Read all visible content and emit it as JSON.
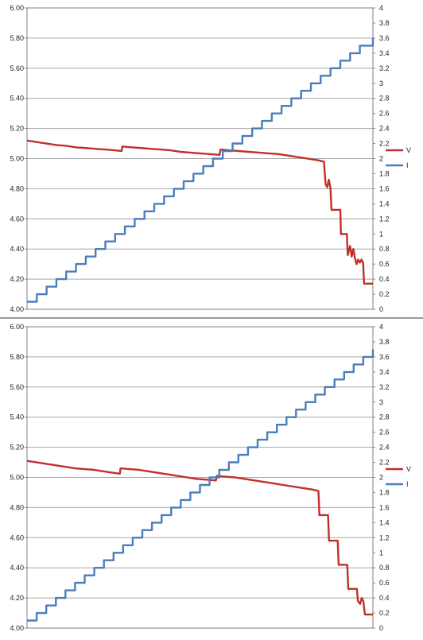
{
  "chart_data": [
    {
      "type": "line",
      "title": "",
      "xlabel": "",
      "y_left": {
        "min": 4.0,
        "max": 6.0,
        "ticks": [
          "4.00",
          "4.20",
          "4.40",
          "4.60",
          "4.80",
          "5.00",
          "5.20",
          "5.40",
          "5.60",
          "5.80",
          "6.00"
        ]
      },
      "y_right": {
        "min": 0,
        "max": 4,
        "ticks": [
          "0",
          "0.2",
          "0.4",
          "0.6",
          "0.8",
          "1",
          "1.2",
          "1.4",
          "1.6",
          "1.8",
          "2",
          "2.2",
          "2.4",
          "2.6",
          "2.8",
          "3",
          "3.2",
          "3.4",
          "3.6",
          "3.8",
          "4"
        ]
      },
      "grid": true,
      "legend_position": "right",
      "series": [
        {
          "name": "V",
          "axis": "left",
          "color": "#c0302a",
          "points": [
            [
              0,
              5.12
            ],
            [
              3,
              5.11
            ],
            [
              6,
              5.1
            ],
            [
              9,
              5.09
            ],
            [
              12,
              5.085
            ],
            [
              15,
              5.075
            ],
            [
              18,
              5.07
            ],
            [
              21,
              5.065
            ],
            [
              24,
              5.06
            ],
            [
              27,
              5.055
            ],
            [
              29,
              5.05
            ],
            [
              29.2,
              5.08
            ],
            [
              32,
              5.075
            ],
            [
              35,
              5.07
            ],
            [
              38,
              5.065
            ],
            [
              41,
              5.06
            ],
            [
              44,
              5.055
            ],
            [
              47,
              5.045
            ],
            [
              50,
              5.04
            ],
            [
              53,
              5.035
            ],
            [
              56,
              5.03
            ],
            [
              59,
              5.025
            ],
            [
              59.3,
              5.06
            ],
            [
              62,
              5.055
            ],
            [
              65,
              5.05
            ],
            [
              68,
              5.045
            ],
            [
              71,
              5.04
            ],
            [
              74,
              5.035
            ],
            [
              77,
              5.03
            ],
            [
              80,
              5.02
            ],
            [
              83,
              5.01
            ],
            [
              86,
              5.0
            ],
            [
              89,
              4.99
            ],
            [
              91,
              4.98
            ],
            [
              91.5,
              4.83
            ],
            [
              92,
              4.81
            ],
            [
              92.5,
              4.86
            ],
            [
              93,
              4.8
            ],
            [
              93.3,
              4.66
            ],
            [
              96,
              4.66
            ],
            [
              96.2,
              4.5
            ],
            [
              98,
              4.5
            ],
            [
              98.3,
              4.36
            ],
            [
              99,
              4.42
            ],
            [
              99.5,
              4.35
            ],
            [
              100,
              4.4
            ],
            [
              100.5,
              4.34
            ],
            [
              101,
              4.3
            ],
            [
              101.5,
              4.33
            ],
            [
              102,
              4.31
            ],
            [
              102.5,
              4.33
            ],
            [
              103,
              4.31
            ],
            [
              103.3,
              4.17
            ],
            [
              106,
              4.17
            ]
          ]
        },
        {
          "name": "I",
          "axis": "right",
          "color": "#4a7ebb",
          "step_x": [
            0,
            3,
            6,
            9,
            12,
            15,
            18,
            21,
            24,
            27,
            30,
            33,
            36,
            39,
            42,
            45,
            48,
            51,
            54,
            57,
            60,
            63,
            66,
            69,
            72,
            75,
            78,
            81,
            84,
            87,
            90,
            93,
            96,
            99,
            102,
            106
          ],
          "step_y": [
            0.1,
            0.2,
            0.3,
            0.4,
            0.5,
            0.6,
            0.7,
            0.8,
            0.9,
            1.0,
            1.1,
            1.2,
            1.3,
            1.4,
            1.5,
            1.6,
            1.7,
            1.8,
            1.9,
            2.0,
            2.1,
            2.2,
            2.3,
            2.4,
            2.5,
            2.6,
            2.7,
            2.8,
            2.9,
            3.0,
            3.1,
            3.2,
            3.3,
            3.4,
            3.5,
            3.6
          ]
        }
      ]
    },
    {
      "type": "line",
      "title": "",
      "xlabel": "",
      "y_left": {
        "min": 4.0,
        "max": 6.0,
        "ticks": [
          "4.00",
          "4.20",
          "4.40",
          "4.60",
          "4.80",
          "5.00",
          "5.20",
          "5.40",
          "5.60",
          "5.80",
          "6.00"
        ]
      },
      "y_right": {
        "min": 0,
        "max": 4,
        "ticks": [
          "0",
          "0.2",
          "0.4",
          "0.6",
          "0.8",
          "1",
          "1.2",
          "1.4",
          "1.6",
          "1.8",
          "2",
          "2.2",
          "2.4",
          "2.6",
          "2.8",
          "3",
          "3.2",
          "3.4",
          "3.6",
          "3.8",
          "4"
        ]
      },
      "grid": true,
      "legend_position": "right",
      "series": [
        {
          "name": "V",
          "axis": "left",
          "color": "#c0302a",
          "points": [
            [
              0,
              5.11
            ],
            [
              3,
              5.1
            ],
            [
              6,
              5.09
            ],
            [
              9,
              5.08
            ],
            [
              12,
              5.07
            ],
            [
              15,
              5.06
            ],
            [
              18,
              5.055
            ],
            [
              21,
              5.05
            ],
            [
              24,
              5.04
            ],
            [
              27,
              5.03
            ],
            [
              29,
              5.025
            ],
            [
              29.2,
              5.06
            ],
            [
              32,
              5.055
            ],
            [
              35,
              5.05
            ],
            [
              38,
              5.04
            ],
            [
              41,
              5.03
            ],
            [
              44,
              5.02
            ],
            [
              47,
              5.01
            ],
            [
              50,
              5.0
            ],
            [
              53,
              4.99
            ],
            [
              56,
              4.985
            ],
            [
              59,
              4.98
            ],
            [
              59.3,
              5.01
            ],
            [
              62,
              5.005
            ],
            [
              65,
              5.0
            ],
            [
              68,
              4.99
            ],
            [
              71,
              4.98
            ],
            [
              74,
              4.97
            ],
            [
              77,
              4.96
            ],
            [
              80,
              4.95
            ],
            [
              83,
              4.94
            ],
            [
              86,
              4.93
            ],
            [
              89,
              4.92
            ],
            [
              91,
              4.91
            ],
            [
              91.3,
              4.75
            ],
            [
              94,
              4.75
            ],
            [
              94.3,
              4.58
            ],
            [
              97,
              4.58
            ],
            [
              97.3,
              4.42
            ],
            [
              100,
              4.42
            ],
            [
              100.3,
              4.26
            ],
            [
              103,
              4.26
            ],
            [
              103.3,
              4.18
            ],
            [
              104,
              4.16
            ],
            [
              104.5,
              4.2
            ],
            [
              105,
              4.18
            ],
            [
              105.5,
              4.09
            ],
            [
              108,
              4.09
            ]
          ]
        },
        {
          "name": "I",
          "axis": "right",
          "color": "#4a7ebb",
          "step_x": [
            0,
            3,
            6,
            9,
            12,
            15,
            18,
            21,
            24,
            27,
            30,
            33,
            36,
            39,
            42,
            45,
            48,
            51,
            54,
            57,
            60,
            63,
            66,
            69,
            72,
            75,
            78,
            81,
            84,
            87,
            90,
            93,
            96,
            99,
            102,
            105,
            108
          ],
          "step_y": [
            0.1,
            0.2,
            0.3,
            0.4,
            0.5,
            0.6,
            0.7,
            0.8,
            0.9,
            1.0,
            1.1,
            1.2,
            1.3,
            1.4,
            1.5,
            1.6,
            1.7,
            1.8,
            1.9,
            2.0,
            2.1,
            2.2,
            2.3,
            2.4,
            2.5,
            2.6,
            2.7,
            2.8,
            2.9,
            3.0,
            3.1,
            3.2,
            3.3,
            3.4,
            3.5,
            3.6,
            3.7
          ]
        }
      ]
    }
  ],
  "colors": {
    "grid": "#a6a6a6",
    "axis": "#808080",
    "panel_divider": "#9a9a9a"
  }
}
